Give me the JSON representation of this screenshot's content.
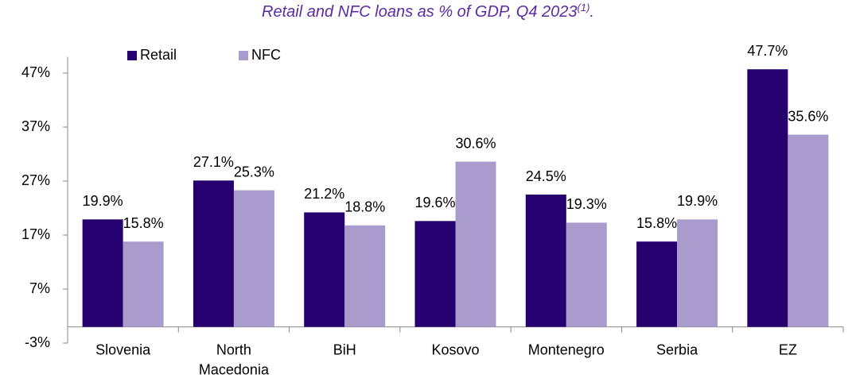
{
  "chart_data": {
    "type": "bar",
    "title": "Retail and NFC loans as % of GDP, Q4 2023",
    "title_superscript": "(1)",
    "title_end": ".",
    "categories": [
      "Slovenia",
      "North Macedonia",
      "BiH",
      "Kosovo",
      "Montenegro",
      "Serbia",
      "EZ"
    ],
    "series": [
      {
        "name": "Retail",
        "color": "#25006e",
        "values": [
          19.9,
          27.1,
          21.2,
          19.6,
          24.5,
          15.8,
          47.7
        ],
        "value_labels": [
          "19.9%",
          "27.1%",
          "21.2%",
          "19.6%",
          "24.5%",
          "15.8%",
          "47.7%"
        ]
      },
      {
        "name": "NFC",
        "color": "#a99ccc",
        "values": [
          15.8,
          25.3,
          18.8,
          30.6,
          19.3,
          19.9,
          35.6
        ],
        "value_labels": [
          "15.8%",
          "25.3%",
          "18.8%",
          "30.6%",
          "19.3%",
          "19.9%",
          "35.6%"
        ]
      }
    ],
    "ylim": [
      -3,
      50
    ],
    "yticks": [
      {
        "value": -3,
        "label": "-3%"
      },
      {
        "value": 7,
        "label": "7%"
      },
      {
        "value": 17,
        "label": "17%"
      },
      {
        "value": 27,
        "label": "27%"
      },
      {
        "value": 37,
        "label": "37%"
      },
      {
        "value": 47,
        "label": "47%"
      }
    ],
    "grid": false,
    "legend": "top-left"
  }
}
